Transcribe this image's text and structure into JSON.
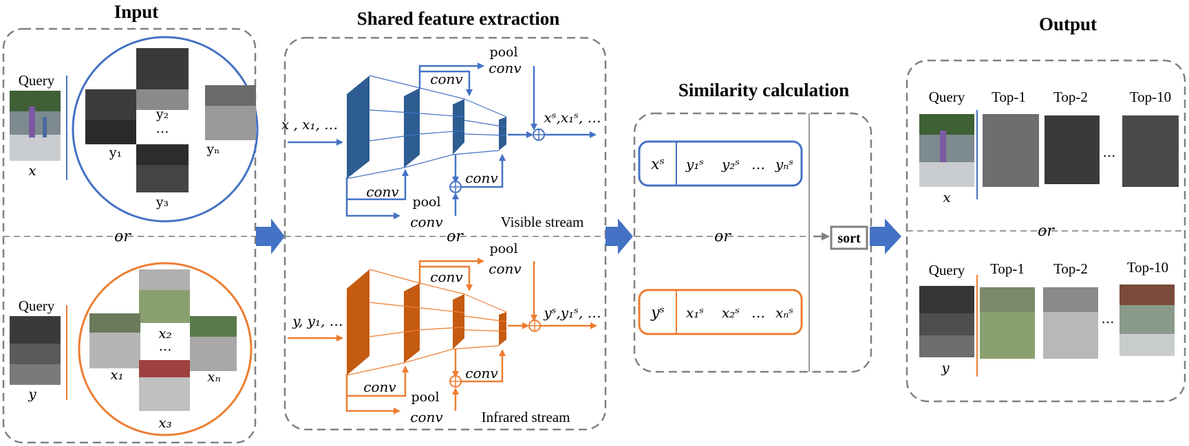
{
  "titles": {
    "input": "Input",
    "shared": "Shared feature extraction",
    "similarity": "Similarity calculation",
    "output": "Output"
  },
  "input": {
    "query_label": "Query",
    "visible": {
      "query_var": "x",
      "gallery": [
        "y₂",
        "yₙ",
        "y₁",
        "y₃"
      ],
      "dots": "…"
    },
    "or": "or",
    "infrared": {
      "query_var": "y",
      "gallery": [
        "x₂",
        "xₙ",
        "x₁",
        "x₃"
      ],
      "dots": "…"
    }
  },
  "network": {
    "or": "or",
    "visible": {
      "input": "x , x₁, …",
      "output": "xˢ,x₁ˢ, …",
      "pool1": "pool",
      "conv1": "conv",
      "conv2": "conv",
      "conv3": "conv",
      "conv4": "conv",
      "pool2": "pool",
      "conv5": "conv",
      "stream": "Visible stream"
    },
    "infrared": {
      "input": "y, y₁, …",
      "output": "yˢ,y₁ˢ, …",
      "pool1": "pool",
      "conv1": "conv",
      "conv2": "conv",
      "conv3": "conv",
      "conv4": "conv",
      "pool2": "pool",
      "conv5": "conv",
      "stream": "Infrared stream"
    }
  },
  "similarity": {
    "top": {
      "query": "xˢ",
      "items": [
        "y₁ˢ",
        "y₂ˢ",
        "…",
        "yₙˢ"
      ]
    },
    "or": "or",
    "bottom": {
      "query": "yˢ",
      "items": [
        "x₁ˢ",
        "x₂ˢ",
        "…",
        "xₙˢ"
      ]
    },
    "sort": "sort"
  },
  "output": {
    "or": "or",
    "top": {
      "query_label": "Query",
      "query_var": "x",
      "ranks": [
        "Top-1",
        "Top-2",
        "Top-10"
      ],
      "dots": "…"
    },
    "bottom": {
      "query_label": "Query",
      "query_var": "y",
      "ranks": [
        "Top-1",
        "Top-2",
        "Top-10"
      ],
      "dots": "…"
    }
  },
  "colors": {
    "visible": "#4472c4",
    "infrared": "#ed7d31",
    "arrow": "#4472c4",
    "dash": "#808080"
  }
}
